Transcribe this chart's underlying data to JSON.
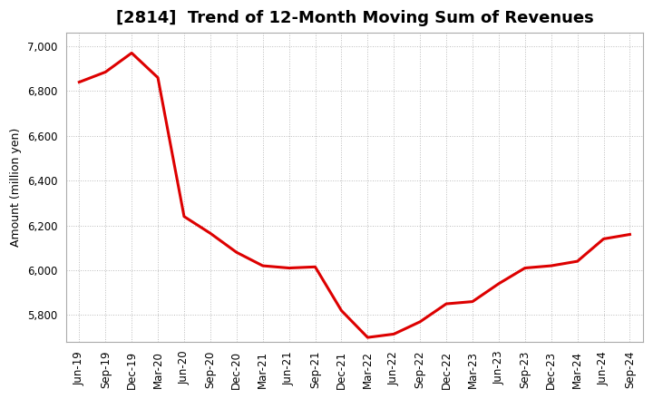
{
  "title": "[2814]  Trend of 12-Month Moving Sum of Revenues",
  "ylabel": "Amount (million yen)",
  "line_color": "#dd0000",
  "background_color": "#ffffff",
  "plot_bg_color": "#ffffff",
  "grid_color": "#bbbbbb",
  "labels": [
    "Jun-19",
    "Sep-19",
    "Dec-19",
    "Mar-20",
    "Jun-20",
    "Sep-20",
    "Dec-20",
    "Mar-21",
    "Jun-21",
    "Sep-21",
    "Dec-21",
    "Mar-22",
    "Jun-22",
    "Sep-22",
    "Dec-22",
    "Mar-23",
    "Jun-23",
    "Sep-23",
    "Dec-23",
    "Mar-24",
    "Jun-24",
    "Sep-24"
  ],
  "values": [
    6840,
    6885,
    6970,
    6860,
    6240,
    6165,
    6080,
    6020,
    6010,
    6015,
    5820,
    5700,
    5715,
    5770,
    5850,
    5860,
    5940,
    6010,
    6020,
    6040,
    6140,
    6160
  ],
  "ylim": [
    5680,
    7060
  ],
  "yticks": [
    5800,
    6000,
    6200,
    6400,
    6600,
    6800,
    7000
  ],
  "line_width": 2.2,
  "title_fontsize": 13,
  "axis_fontsize": 9,
  "tick_fontsize": 8.5
}
